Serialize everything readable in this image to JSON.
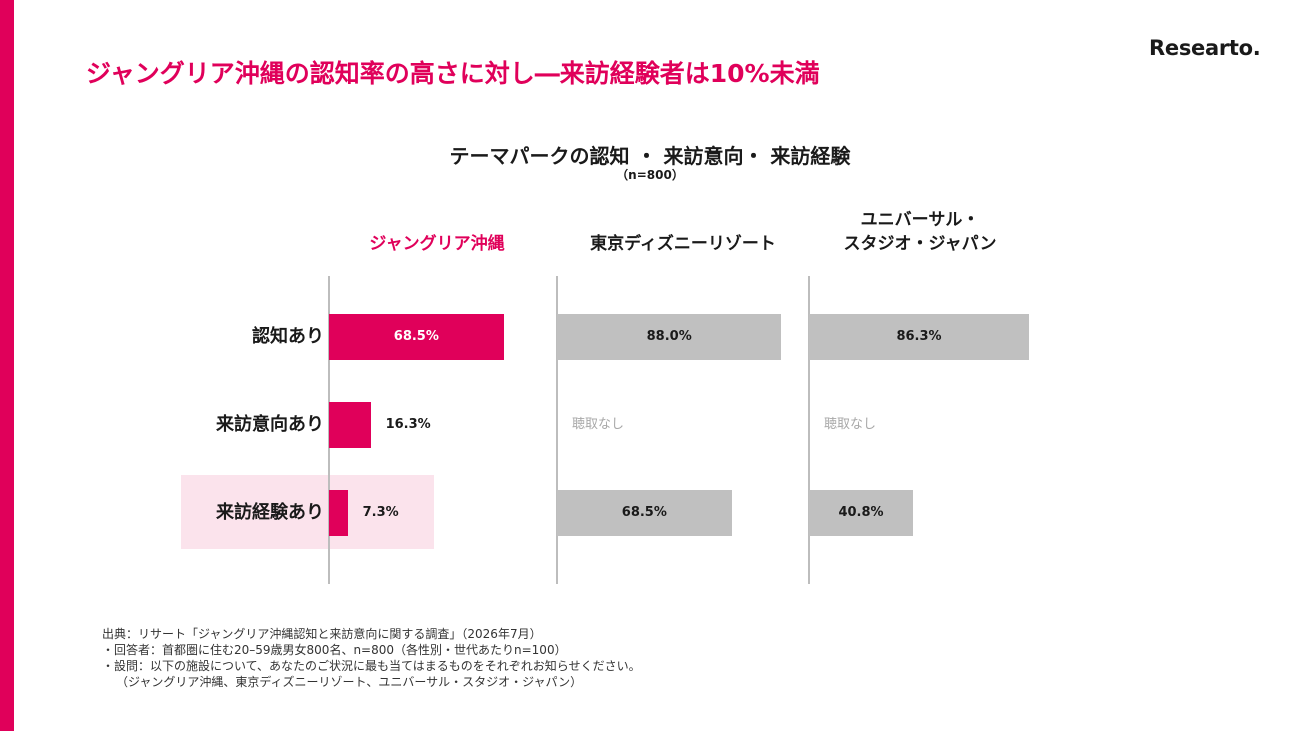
{
  "page": {
    "title": "ジャングリア沖縄の認知率の高さに対し―来訪経験者は10%未満",
    "brand": "Researto.",
    "accent_color": "#e0005a",
    "gray_color": "#c0c0c0",
    "highlight_color": "#fbe3ec"
  },
  "chart_data": {
    "type": "bar",
    "orientation": "horizontal",
    "title": "テーマパークの認知 ・ 来訪意向・ 来訪経験",
    "subtitle": "（n=800）",
    "unit": "%",
    "xlim": [
      0,
      100
    ],
    "grid": false,
    "legend": "none",
    "categories": [
      "認知あり",
      "来訪意向あり",
      "来訪経験あり"
    ],
    "highlighted_category": "来訪経験あり",
    "not_asked_label": "聴取なし",
    "series": [
      {
        "name": "ジャングリア沖縄",
        "title_lines": [
          "ジャングリア沖縄"
        ],
        "color": "#e0005a",
        "values": [
          68.5,
          16.3,
          7.3
        ],
        "labels": [
          "68.5%",
          "16.3%",
          "7.3%"
        ]
      },
      {
        "name": "東京ディズニーリゾート",
        "title_lines": [
          "東京ディズニーリゾート"
        ],
        "color": "#c0c0c0",
        "values": [
          88.0,
          null,
          68.5
        ],
        "labels": [
          "88.0%",
          "聴取なし",
          "68.5%"
        ]
      },
      {
        "name": "ユニバーサル・スタジオ・ジャパン",
        "title_lines": [
          "ユニバーサル・",
          "スタジオ・ジャパン"
        ],
        "color": "#c0c0c0",
        "values": [
          86.3,
          null,
          40.8
        ],
        "labels": [
          "86.3%",
          "聴取なし",
          "40.8%"
        ]
      }
    ]
  },
  "footnote": {
    "lines": [
      "出典：リサート「ジャングリア沖縄認知と来訪意向に関する調査」（2026年7月）",
      "・回答者：首都圏に住む20–59歳男女800名、n=800（各性別・世代あたりn=100）",
      "・設問：以下の施設について、あなたのご状況に最も当てはまるものをそれぞれお知らせください。",
      "（ジャングリア沖縄、東京ディズニーリゾート、ユニバーサル・スタジオ・ジャパン）"
    ]
  }
}
